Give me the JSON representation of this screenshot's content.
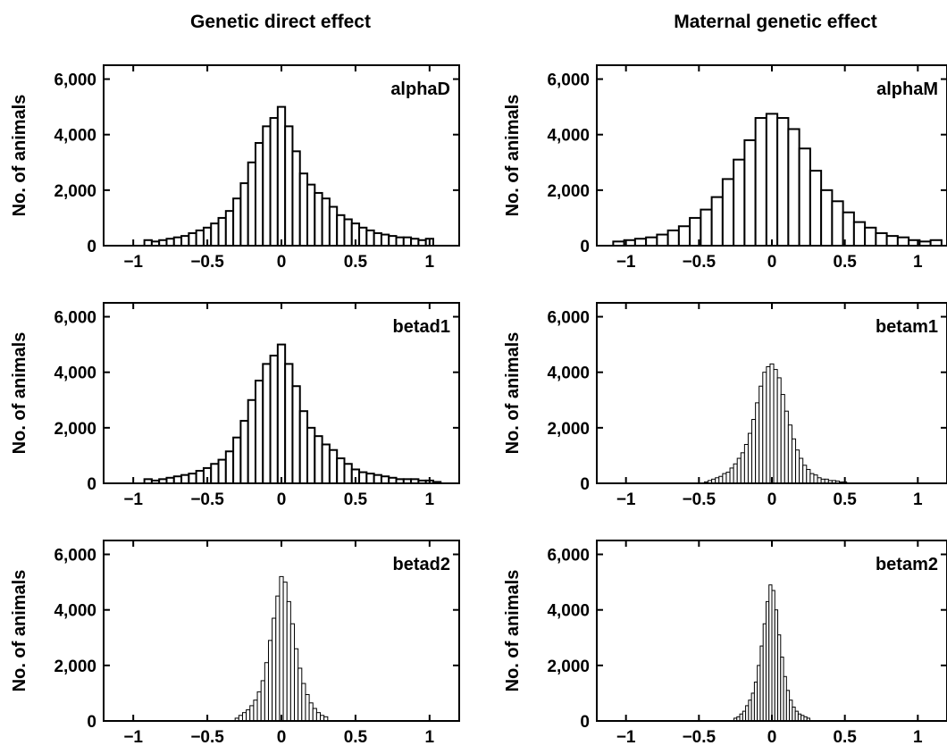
{
  "columns": [
    "Genetic direct effect",
    "Maternal genetic effect"
  ],
  "chart_data": [
    {
      "type": "bar",
      "label": "alphaD",
      "ylabel": "No. of animals",
      "xticks": [
        "−1",
        "−0.5",
        "0",
        "0.5",
        "1"
      ],
      "yticks": [
        "0",
        "2,000",
        "4,000",
        "6,000"
      ],
      "xlim": [
        -1.2,
        1.2
      ],
      "ylim": [
        0,
        6500
      ],
      "bin_width": 0.05,
      "x": [
        -0.9,
        -0.85,
        -0.8,
        -0.75,
        -0.7,
        -0.65,
        -0.6,
        -0.55,
        -0.5,
        -0.45,
        -0.4,
        -0.35,
        -0.3,
        -0.25,
        -0.2,
        -0.15,
        -0.1,
        -0.05,
        0,
        0.05,
        0.1,
        0.15,
        0.2,
        0.25,
        0.3,
        0.35,
        0.4,
        0.45,
        0.5,
        0.55,
        0.6,
        0.65,
        0.7,
        0.75,
        0.8,
        0.85,
        0.9,
        0.95,
        1.0
      ],
      "values": [
        200,
        150,
        200,
        250,
        300,
        350,
        450,
        550,
        650,
        800,
        1000,
        1250,
        1700,
        2250,
        3000,
        3700,
        4300,
        4600,
        5000,
        4300,
        3400,
        2600,
        2200,
        1900,
        1700,
        1400,
        1100,
        950,
        800,
        650,
        550,
        450,
        400,
        350,
        300,
        300,
        250,
        200,
        250
      ]
    },
    {
      "type": "bar",
      "label": "alphaM",
      "ylabel": "No. of animals",
      "xticks": [
        "−1",
        "−0.5",
        "0",
        "0.5",
        "1"
      ],
      "yticks": [
        "0",
        "2,000",
        "4,000",
        "6,000"
      ],
      "xlim": [
        -1.2,
        1.2
      ],
      "ylim": [
        0,
        6500
      ],
      "bin_width": 0.075,
      "x": [
        -1.05,
        -0.975,
        -0.9,
        -0.825,
        -0.75,
        -0.675,
        -0.6,
        -0.525,
        -0.45,
        -0.375,
        -0.3,
        -0.225,
        -0.15,
        -0.075,
        0,
        0.075,
        0.15,
        0.225,
        0.3,
        0.375,
        0.45,
        0.525,
        0.6,
        0.675,
        0.75,
        0.825,
        0.9,
        0.975,
        1.05,
        1.125
      ],
      "values": [
        150,
        200,
        250,
        300,
        400,
        550,
        700,
        1000,
        1300,
        1750,
        2400,
        3100,
        3800,
        4600,
        4750,
        4600,
        4200,
        3500,
        2700,
        2000,
        1600,
        1200,
        850,
        650,
        450,
        350,
        300,
        200,
        150,
        200
      ]
    },
    {
      "type": "bar",
      "label": "betad1",
      "ylabel": "No. of animals",
      "xticks": [
        "−1",
        "−0.5",
        "0",
        "0.5",
        "1"
      ],
      "yticks": [
        "0",
        "2,000",
        "4,000",
        "6,000"
      ],
      "xlim": [
        -1.2,
        1.2
      ],
      "ylim": [
        0,
        6500
      ],
      "bin_width": 0.05,
      "x": [
        -0.9,
        -0.85,
        -0.8,
        -0.75,
        -0.7,
        -0.65,
        -0.6,
        -0.55,
        -0.5,
        -0.45,
        -0.4,
        -0.35,
        -0.3,
        -0.25,
        -0.2,
        -0.15,
        -0.1,
        -0.05,
        0,
        0.05,
        0.1,
        0.15,
        0.2,
        0.25,
        0.3,
        0.35,
        0.4,
        0.45,
        0.5,
        0.55,
        0.6,
        0.65,
        0.7,
        0.75,
        0.8,
        0.85,
        0.9,
        0.95,
        1.0,
        1.05
      ],
      "values": [
        150,
        100,
        150,
        200,
        250,
        300,
        350,
        450,
        550,
        700,
        850,
        1150,
        1650,
        2250,
        3000,
        3700,
        4300,
        4600,
        5000,
        4300,
        3500,
        2600,
        2000,
        1700,
        1400,
        1200,
        900,
        700,
        500,
        400,
        350,
        300,
        250,
        200,
        150,
        150,
        150,
        100,
        100,
        50
      ]
    },
    {
      "type": "bar",
      "label": "betam1",
      "ylabel": "No. of animals",
      "xticks": [
        "−1",
        "−0.5",
        "0",
        "0.5",
        "1"
      ],
      "yticks": [
        "0",
        "2,000",
        "4,000",
        "6,000"
      ],
      "xlim": [
        -1.2,
        1.2
      ],
      "ylim": [
        0,
        6500
      ],
      "bin_width": 0.025,
      "x": [
        -0.45,
        -0.425,
        -0.4,
        -0.375,
        -0.35,
        -0.325,
        -0.3,
        -0.275,
        -0.25,
        -0.225,
        -0.2,
        -0.175,
        -0.15,
        -0.125,
        -0.1,
        -0.075,
        -0.05,
        -0.025,
        0,
        0.025,
        0.05,
        0.075,
        0.1,
        0.125,
        0.15,
        0.175,
        0.2,
        0.225,
        0.25,
        0.275,
        0.3,
        0.325,
        0.35,
        0.375,
        0.4,
        0.425,
        0.45,
        0.475,
        0.5
      ],
      "values": [
        50,
        100,
        150,
        200,
        250,
        350,
        400,
        550,
        700,
        900,
        1100,
        1400,
        1800,
        2300,
        2900,
        3500,
        4000,
        4200,
        4300,
        4100,
        3800,
        3200,
        2600,
        2100,
        1600,
        1200,
        900,
        650,
        500,
        350,
        300,
        200,
        150,
        150,
        100,
        100,
        80,
        50,
        50
      ]
    },
    {
      "type": "bar",
      "label": "betad2",
      "ylabel": "No. of animals",
      "xticks": [
        "−1",
        "−0.5",
        "0",
        "0.5",
        "1"
      ],
      "yticks": [
        "0",
        "2,000",
        "4,000",
        "6,000"
      ],
      "xlim": [
        -1.2,
        1.2
      ],
      "ylim": [
        0,
        6500
      ],
      "bin_width": 0.025,
      "x": [
        -0.3,
        -0.275,
        -0.25,
        -0.225,
        -0.2,
        -0.175,
        -0.15,
        -0.125,
        -0.1,
        -0.075,
        -0.05,
        -0.025,
        0,
        0.025,
        0.05,
        0.075,
        0.1,
        0.125,
        0.15,
        0.175,
        0.2,
        0.225,
        0.25,
        0.275,
        0.3
      ],
      "values": [
        100,
        200,
        300,
        400,
        550,
        750,
        1050,
        1450,
        2100,
        2900,
        3700,
        4500,
        5200,
        5000,
        4300,
        3500,
        2600,
        1900,
        1350,
        950,
        650,
        450,
        300,
        200,
        150
      ]
    },
    {
      "type": "bar",
      "label": "betam2",
      "ylabel": "No. of animals",
      "xticks": [
        "−1",
        "−0.5",
        "0",
        "0.5",
        "1"
      ],
      "yticks": [
        "0",
        "2,000",
        "4,000",
        "6,000"
      ],
      "xlim": [
        -1.2,
        1.2
      ],
      "ylim": [
        0,
        6500
      ],
      "bin_width": 0.02,
      "x": [
        -0.25,
        -0.23,
        -0.21,
        -0.19,
        -0.17,
        -0.15,
        -0.13,
        -0.11,
        -0.09,
        -0.07,
        -0.05,
        -0.03,
        -0.01,
        0.01,
        0.03,
        0.05,
        0.07,
        0.09,
        0.11,
        0.13,
        0.15,
        0.17,
        0.19,
        0.21,
        0.23,
        0.25
      ],
      "values": [
        100,
        150,
        250,
        350,
        550,
        750,
        1000,
        1400,
        2000,
        2700,
        3500,
        4300,
        4900,
        4700,
        4000,
        3100,
        2300,
        1600,
        1100,
        750,
        500,
        350,
        250,
        200,
        150,
        100
      ]
    }
  ]
}
